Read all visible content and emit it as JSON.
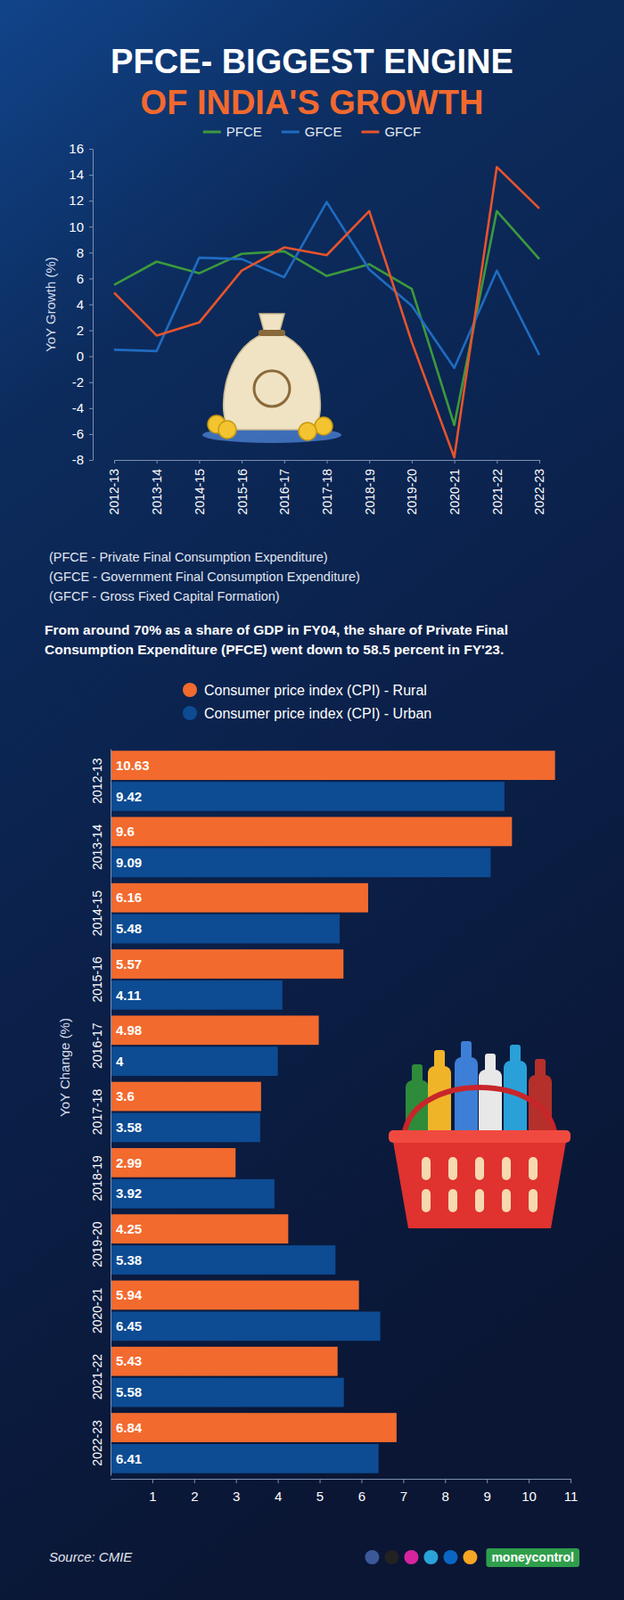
{
  "title": [
    "PFCE- BIGGEST ENGINE",
    "OF INDIA'S GROWTH"
  ],
  "chart_data": [
    {
      "type": "line",
      "y_label": "YoY Growth (%)",
      "categories": [
        "2012-13",
        "2013-14",
        "2014-15",
        "2015-16",
        "2016-17",
        "2017-18",
        "2018-19",
        "2019-20",
        "2020-21",
        "2021-22",
        "2022-23"
      ],
      "series": [
        {
          "name": "PFCE",
          "color": "#3c9a3c",
          "values": [
            5.5,
            7.3,
            6.4,
            7.9,
            8.1,
            6.2,
            7.1,
            5.2,
            -5.3,
            11.2,
            7.5
          ]
        },
        {
          "name": "GFCE",
          "color": "#1f6cc0",
          "values": [
            0.5,
            0.4,
            7.6,
            7.5,
            6.1,
            11.9,
            6.7,
            3.9,
            -0.9,
            6.6,
            0.1
          ]
        },
        {
          "name": "GFCF",
          "color": "#e8542b",
          "values": [
            4.9,
            1.6,
            2.6,
            6.6,
            8.4,
            7.8,
            11.2,
            1.1,
            -7.8,
            14.6,
            11.4
          ]
        }
      ],
      "ylim": [
        -8,
        16
      ],
      "yticks": [
        -8,
        -6,
        -4,
        -2,
        0,
        2,
        4,
        6,
        8,
        10,
        12,
        14,
        16
      ],
      "grid": false,
      "legend": "top"
    },
    {
      "type": "bar",
      "orientation": "horizontal",
      "y_label": "YoY Change (%)",
      "categories": [
        "2012-13",
        "2013-14",
        "2014-15",
        "2015-16",
        "2016-17",
        "2017-18",
        "2018-19",
        "2019-20",
        "2020-21",
        "2021-22",
        "2022-23"
      ],
      "series": [
        {
          "name": "Consumer price index (CPI) - Rural",
          "color": "#f26a2e",
          "values": [
            10.63,
            9.6,
            6.16,
            5.57,
            4.98,
            3.6,
            2.99,
            4.25,
            5.94,
            5.43,
            6.84
          ]
        },
        {
          "name": "Consumer price index (CPI) - Urban",
          "color": "#0d4b93",
          "values": [
            9.42,
            9.09,
            5.48,
            4.11,
            4,
            3.58,
            3.92,
            5.38,
            6.45,
            5.58,
            6.41
          ]
        }
      ],
      "xlim": [
        0,
        11
      ],
      "xticks": [
        1,
        2,
        3,
        4,
        5,
        6,
        7,
        8,
        9,
        10,
        11
      ],
      "data_labels": true,
      "grid": false,
      "legend": "top"
    }
  ],
  "notes": [
    "(PFCE - Private Final Consumption Expenditure)",
    "(GFCE - Government Final Consumption Expenditure)",
    "(GFCF - Gross Fixed Capital Formation)"
  ],
  "statement": "From around 70% as a share of GDP in FY04, the share of Private Final Consumption Expenditure (PFCE) went down to 58.5 percent in FY'23.",
  "source": "Source: CMIE",
  "brand": "moneycontrol"
}
